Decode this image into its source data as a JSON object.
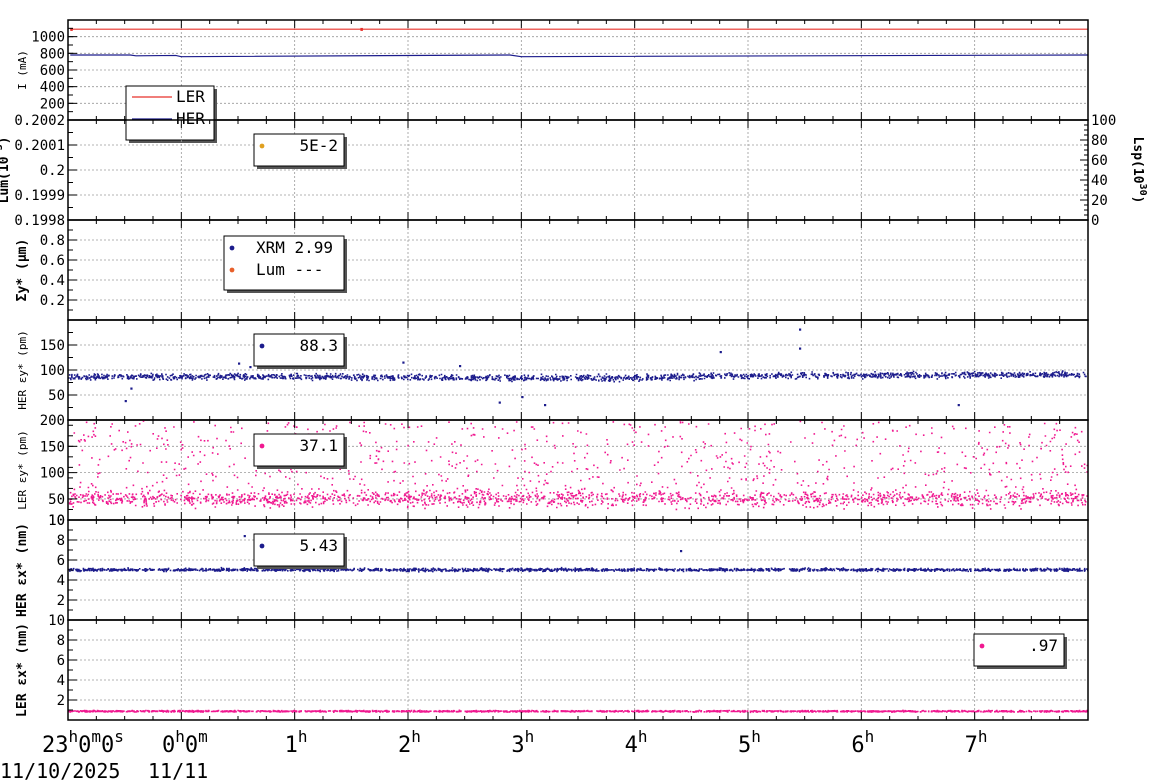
{
  "x_axis": {
    "ticks": [
      {
        "label": "23",
        "sup": "h",
        "label2": "0",
        "sup2": "m",
        "label3": "0",
        "sup3": "s",
        "hour": -1.0
      },
      {
        "label": "0",
        "sup": "h",
        "label2": "0",
        "sup2": "m",
        "label3": "",
        "sup3": "",
        "hour": 0
      },
      {
        "label": "1",
        "sup": "h",
        "label2": "",
        "sup2": "",
        "label3": "",
        "sup3": "",
        "hour": 1
      },
      {
        "label": "2",
        "sup": "h",
        "label2": "",
        "sup2": "",
        "label3": "",
        "sup3": "",
        "hour": 2
      },
      {
        "label": "3",
        "sup": "h",
        "label2": "",
        "sup2": "",
        "label3": "",
        "sup3": "",
        "hour": 3
      },
      {
        "label": "4",
        "sup": "h",
        "label2": "",
        "sup2": "",
        "label3": "",
        "sup3": "",
        "hour": 4
      },
      {
        "label": "5",
        "sup": "h",
        "label2": "",
        "sup2": "",
        "label3": "",
        "sup3": "",
        "hour": 5
      },
      {
        "label": "6",
        "sup": "h",
        "label2": "",
        "sup2": "",
        "label3": "",
        "sup3": "",
        "hour": 6
      },
      {
        "label": "7",
        "sup": "h",
        "label2": "",
        "sup2": "",
        "label3": "",
        "sup3": "",
        "hour": 7
      }
    ],
    "dates": [
      "11/10/2025",
      "11/11"
    ],
    "hour_range": [
      -1.0,
      8.0
    ]
  },
  "chart_data": [
    {
      "type": "line",
      "id": "current",
      "ylabel": "I (mA)",
      "ylim": [
        0,
        1200
      ],
      "yticks": [
        200,
        400,
        600,
        800,
        1000
      ],
      "grid": true,
      "legend": {
        "position": "bottom-left",
        "entries": [
          {
            "name": "LER",
            "color": "#e8302a",
            "style": "line"
          },
          {
            "name": "HER",
            "color": "#1c1c8c",
            "style": "line"
          }
        ]
      },
      "series": [
        {
          "name": "LER",
          "color": "#e8302a",
          "x": [
            -0.98,
            8.0
          ],
          "y": [
            1090,
            1090
          ]
        },
        {
          "name": "HER",
          "color": "#1c1c8c",
          "x": [
            -0.98,
            -0.45,
            -0.4,
            -0.05,
            0.0,
            2.9,
            3.0,
            8.0
          ],
          "y": [
            780,
            780,
            770,
            775,
            760,
            780,
            760,
            780
          ]
        }
      ]
    },
    {
      "type": "scatter",
      "id": "luminosity",
      "ylabel": "Lum(10",
      "ylim": [
        0.1998,
        0.2002
      ],
      "yticks": [
        0.1998,
        0.1999,
        0.2,
        0.2001,
        0.2002
      ],
      "ytick_labels": [
        "0.1998",
        "0.1999",
        "0.2",
        "0.2001",
        "0.2002"
      ],
      "y2label": "Lsp(10",
      "y2ticks": [
        0,
        20,
        40,
        60,
        80,
        100
      ],
      "grid": true,
      "legend": {
        "position": "top-left",
        "entries": [
          {
            "name": "",
            "value": "5E-2",
            "color": "#e0a020",
            "style": "dot"
          }
        ]
      },
      "series": []
    },
    {
      "type": "scatter",
      "id": "sigma_y",
      "ylabel": "Σy* (μm)",
      "ylim": [
        0,
        1.0
      ],
      "yticks": [
        0.2,
        0.4,
        0.6,
        0.8
      ],
      "ytick_labels": [
        "0.2",
        "0.4",
        "0.6",
        "0.8"
      ],
      "grid": true,
      "legend": {
        "position": "top-left",
        "entries": [
          {
            "name": "XRM",
            "value": "2.99",
            "color": "#1c1c8c",
            "style": "dot"
          },
          {
            "name": "Lum",
            "value": "---",
            "color": "#e8602a",
            "style": "dot"
          }
        ]
      },
      "series": []
    },
    {
      "type": "scatter",
      "id": "her_eps_y",
      "ylabel": "HER εy* (pm)",
      "ylim": [
        0,
        200
      ],
      "yticks": [
        50,
        100,
        150
      ],
      "grid": true,
      "legend": {
        "position": "top-left",
        "entries": [
          {
            "name": "",
            "value": "88.3",
            "color": "#1c1c8c",
            "style": "dot"
          }
        ]
      },
      "series": [
        {
          "name": "",
          "color": "#1c1c8c",
          "trend_x": [
            -1.0,
            1.0,
            3.0,
            4.0,
            5.0,
            7.0,
            8.0
          ],
          "trend_y": [
            88,
            88,
            85,
            86,
            90,
            92,
            92
          ],
          "spread": 5,
          "outliers": [
            [
              -0.5,
              40
            ],
            [
              -0.45,
              65
            ],
            [
              0.5,
              115
            ],
            [
              0.6,
              108
            ],
            [
              1.95,
              117
            ],
            [
              2.45,
              110
            ],
            [
              2.8,
              37
            ],
            [
              3.0,
              48
            ],
            [
              3.2,
              32
            ],
            [
              4.75,
              138
            ],
            [
              5.45,
              183
            ],
            [
              5.45,
              145
            ],
            [
              6.85,
              32
            ]
          ]
        }
      ]
    },
    {
      "type": "scatter",
      "id": "ler_eps_y",
      "ylabel": "LER εy* (pm)",
      "ylim": [
        10,
        200
      ],
      "yticks": [
        10,
        50,
        100,
        150,
        200
      ],
      "grid": true,
      "legend": {
        "position": "top-left",
        "entries": [
          {
            "name": "",
            "value": "37.1",
            "color": "#f01890",
            "style": "dot"
          }
        ]
      },
      "series": [
        {
          "name": "",
          "color": "#f01890",
          "trend_x": [
            -1.0,
            8.0
          ],
          "trend_y": [
            52,
            52
          ],
          "spread": 12,
          "sparse_range": [
            60,
            200
          ]
        }
      ]
    },
    {
      "type": "scatter",
      "id": "her_eps_x",
      "ylabel": "HER εx* (nm)",
      "ylim": [
        0,
        10
      ],
      "yticks": [
        2,
        4,
        6,
        8,
        10
      ],
      "grid": true,
      "legend": {
        "position": "top-left",
        "entries": [
          {
            "name": "",
            "value": "5.43",
            "color": "#1c1c8c",
            "style": "dot"
          }
        ]
      },
      "series": [
        {
          "name": "",
          "color": "#1c1c8c",
          "trend_x": [
            -1.0,
            8.0
          ],
          "trend_y": [
            5.1,
            5.1
          ],
          "spread": 0.12,
          "outliers": [
            [
              0.55,
              8.5
            ],
            [
              4.4,
              7.0
            ]
          ]
        }
      ]
    },
    {
      "type": "scatter",
      "id": "ler_eps_x",
      "ylabel": "LER εx* (nm)",
      "ylim": [
        0,
        10
      ],
      "yticks": [
        2,
        4,
        6,
        8,
        10
      ],
      "grid": true,
      "legend": {
        "position": "top-right",
        "entries": [
          {
            "name": "",
            "value": ".97",
            "color": "#f01890",
            "style": "dot"
          }
        ]
      },
      "series": [
        {
          "name": "",
          "color": "#f01890",
          "trend_x": [
            -1.0,
            8.0
          ],
          "trend_y": [
            0.95,
            0.95
          ],
          "spread": 0.06
        }
      ]
    }
  ],
  "exponents": {
    "lum_left": "-3",
    "lum_right": "30"
  }
}
